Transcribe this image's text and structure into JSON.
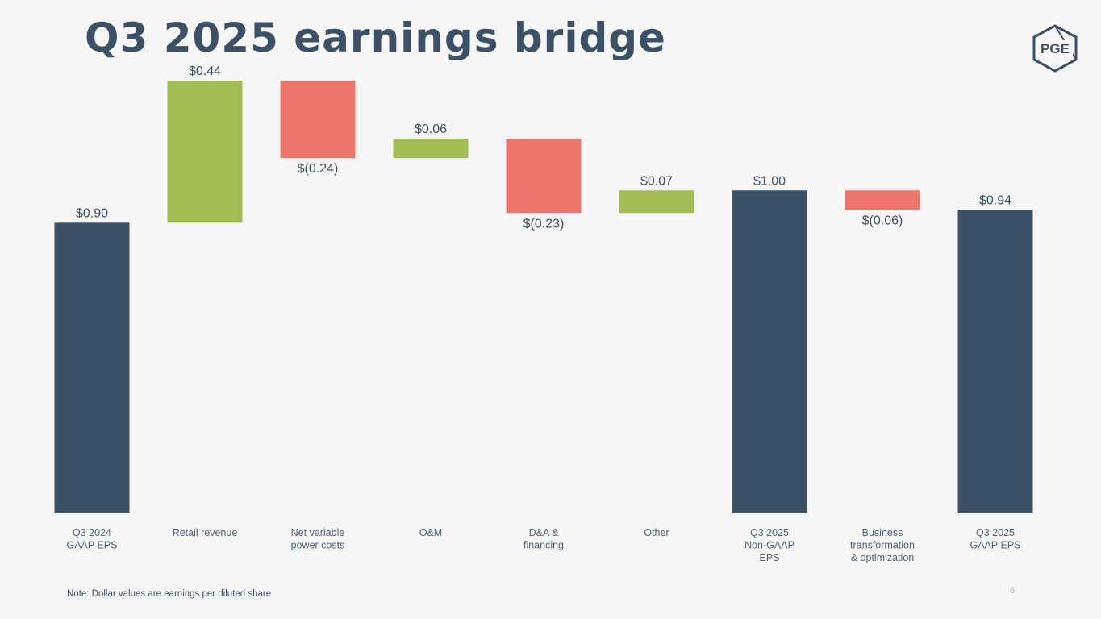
{
  "title": "Q3 2025 earnings bridge",
  "logo_text": "PGE",
  "note": "Note: Dollar values are earnings per diluted share",
  "page_number": "6",
  "colors": {
    "total": "#3d5166",
    "increase": "#a3bd55",
    "decrease": "#ec756b",
    "text": "#3d5166"
  },
  "chart_data": {
    "type": "bar",
    "subtype": "waterfall",
    "title": "Q3 2025 earnings bridge",
    "categories": [
      [
        "Q3 2024",
        "GAAP EPS"
      ],
      [
        "Retail revenue"
      ],
      [
        "Net variable",
        "power costs"
      ],
      [
        "O&M"
      ],
      [
        "D&A &",
        "financing"
      ],
      [
        "Other"
      ],
      [
        "Q3 2025",
        "Non-GAAP",
        "EPS"
      ],
      [
        "Business",
        "transformation",
        "& optimization"
      ],
      [
        "Q3 2025",
        "GAAP EPS"
      ]
    ],
    "steps": [
      {
        "kind": "total",
        "value": 0.9,
        "label": "$0.90"
      },
      {
        "kind": "increase",
        "value": 0.44,
        "label": "$0.44"
      },
      {
        "kind": "decrease",
        "value": -0.24,
        "label": "$(0.24)"
      },
      {
        "kind": "increase",
        "value": 0.06,
        "label": "$0.06"
      },
      {
        "kind": "decrease",
        "value": -0.23,
        "label": "$(0.23)"
      },
      {
        "kind": "increase",
        "value": 0.07,
        "label": "$0.07"
      },
      {
        "kind": "total",
        "value": 1.0,
        "label": "$1.00"
      },
      {
        "kind": "decrease",
        "value": -0.06,
        "label": "$(0.06)"
      },
      {
        "kind": "total",
        "value": 0.94,
        "label": "$0.94"
      }
    ],
    "ylim": [
      0,
      1.34
    ],
    "grid": false,
    "legend": "none"
  }
}
